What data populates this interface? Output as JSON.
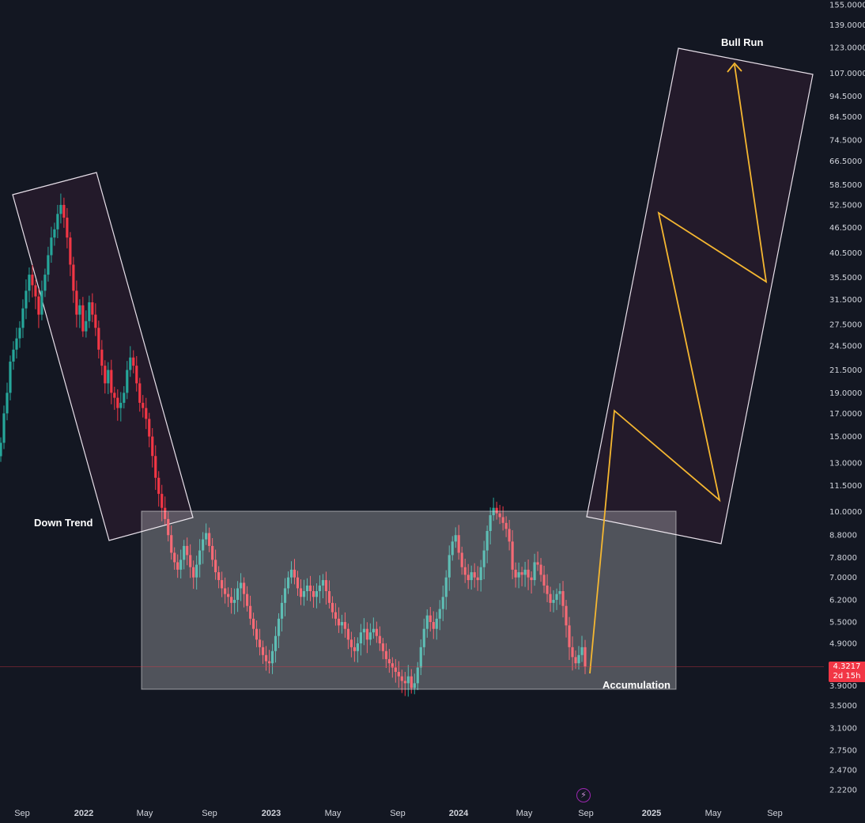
{
  "chart_data": {
    "type": "candlestick",
    "y_scale": "log",
    "ylim": [
      2.1,
      155
    ],
    "y_ticks": [
      "155.0000",
      "139.0000",
      "123.0000",
      "107.0000",
      "94.5000",
      "84.5000",
      "74.5000",
      "66.5000",
      "58.5000",
      "52.5000",
      "46.5000",
      "40.5000",
      "35.5000",
      "31.5000",
      "27.5000",
      "24.5000",
      "21.5000",
      "19.0000",
      "17.0000",
      "15.0000",
      "13.0000",
      "11.5000",
      "10.0000",
      "8.8000",
      "7.8000",
      "7.0000",
      "6.2000",
      "5.5000",
      "4.9000",
      "4.3217",
      "3.9000",
      "3.5000",
      "3.1000",
      "2.7500",
      "2.4700",
      "2.2200"
    ],
    "x_ticks": [
      {
        "label": "Sep",
        "bold": false
      },
      {
        "label": "2022",
        "bold": true
      },
      {
        "label": "May",
        "bold": false
      },
      {
        "label": "Sep",
        "bold": false
      },
      {
        "label": "2023",
        "bold": true
      },
      {
        "label": "May",
        "bold": false
      },
      {
        "label": "Sep",
        "bold": false
      },
      {
        "label": "2024",
        "bold": true
      },
      {
        "label": "May",
        "bold": false
      },
      {
        "label": "Sep",
        "bold": false
      },
      {
        "label": "2025",
        "bold": true
      },
      {
        "label": "May",
        "bold": false
      },
      {
        "label": "Sep",
        "bold": false
      }
    ],
    "current_price": "4.3217",
    "countdown": "2d 15h",
    "colors": {
      "background": "#131722",
      "up": "#26a69a",
      "down": "#f23645",
      "projection": "#f5b731",
      "zone_fill": "#ffffff",
      "zone_stroke": "#ffffff"
    },
    "closes": [
      14.5,
      17.0,
      19.0,
      22.5,
      24.0,
      25.5,
      27.0,
      30.0,
      33.0,
      36.0,
      34.0,
      32.0,
      29.0,
      33.0,
      36.0,
      40.0,
      44.0,
      46.0,
      50.0,
      52.5,
      49.0,
      44.0,
      38.0,
      33.0,
      29.0,
      30.5,
      26.5,
      28.0,
      31.0,
      29.0,
      27.0,
      24.0,
      22.0,
      20.0,
      21.5,
      19.0,
      18.5,
      17.5,
      18.0,
      19.0,
      21.5,
      23.0,
      22.0,
      20.0,
      18.0,
      17.5,
      16.5,
      15.0,
      13.5,
      12.0,
      11.0,
      10.2,
      9.6,
      8.8,
      8.0,
      7.6,
      7.3,
      7.7,
      8.3,
      7.9,
      7.4,
      7.0,
      7.5,
      8.1,
      8.6,
      8.9,
      8.3,
      7.7,
      7.2,
      6.9,
      6.6,
      6.4,
      6.3,
      6.1,
      6.2,
      6.6,
      6.8,
      6.4,
      6.0,
      5.6,
      5.3,
      5.0,
      4.8,
      4.6,
      4.45,
      4.4,
      4.7,
      5.1,
      5.6,
      6.1,
      6.6,
      7.0,
      7.3,
      7.0,
      6.6,
      6.3,
      6.5,
      6.7,
      6.5,
      6.3,
      6.5,
      6.7,
      6.9,
      6.5,
      6.1,
      5.8,
      5.6,
      5.4,
      5.5,
      5.3,
      5.0,
      4.8,
      4.7,
      4.9,
      5.2,
      5.3,
      5.0,
      5.2,
      5.3,
      5.1,
      4.9,
      4.7,
      4.5,
      4.4,
      4.3,
      4.2,
      4.1,
      4.0,
      3.95,
      4.1,
      3.85,
      3.95,
      4.3,
      4.8,
      5.3,
      5.7,
      5.5,
      5.3,
      5.6,
      5.9,
      6.3,
      7.0,
      7.9,
      8.5,
      8.8,
      8.0,
      7.4,
      7.1,
      6.9,
      7.2,
      7.0,
      6.9,
      7.4,
      8.1,
      9.0,
      9.8,
      10.2,
      9.9,
      9.7,
      9.4,
      9.1,
      8.5,
      7.3,
      7.0,
      7.2,
      7.1,
      7.3,
      7.0,
      6.9,
      7.6,
      7.5,
      7.1,
      6.7,
      6.4,
      6.1,
      6.2,
      6.4,
      6.5,
      6.0,
      5.4,
      4.8,
      4.55,
      4.4,
      4.6,
      4.8,
      4.3217
    ]
  },
  "annotations": {
    "down_trend": "Down Trend",
    "accumulation": "Accumulation",
    "bull_run": "Bull Run"
  },
  "price_tag": {
    "price": "4.3217",
    "countdown": "2d 15h"
  },
  "icons": {
    "bolt": "lightning-bolt-icon"
  }
}
